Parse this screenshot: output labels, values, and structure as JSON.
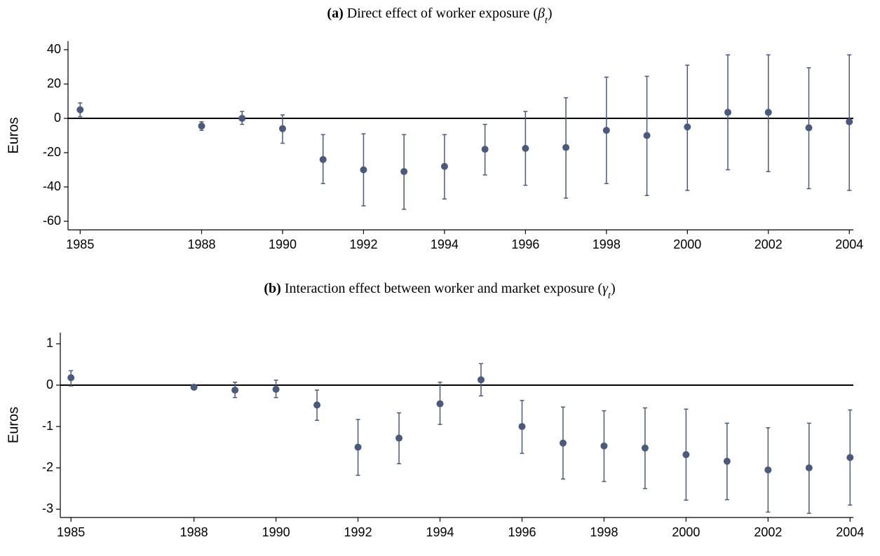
{
  "chart_data": [
    {
      "type": "scatter",
      "title": [
        "(a)",
        "Direct effect of worker exposure (",
        "β",
        "t",
        ")"
      ],
      "y_label": "Euros",
      "x": [
        1985,
        1988,
        1989,
        1990,
        1991,
        1992,
        1993,
        1994,
        1995,
        1996,
        1997,
        1998,
        1999,
        2000,
        2001,
        2002,
        2003,
        2004
      ],
      "series": [
        {
          "color": "#4b5a7a",
          "values": [
            5,
            -4.5,
            0,
            -6,
            -24,
            -30,
            -31,
            -28,
            -18,
            -17.5,
            -17,
            -7,
            -10,
            -5,
            3.5,
            3.5,
            -5.5,
            -2
          ],
          "lower": [
            1,
            -7,
            -3.5,
            -14.5,
            -38,
            -51,
            -53,
            -47,
            -33,
            -39,
            -46.5,
            -38,
            -45,
            -42,
            -30,
            -31,
            -41,
            -42
          ],
          "upper": [
            9,
            -2,
            4,
            2,
            -9.5,
            -9,
            -9.5,
            -9.5,
            -3.5,
            4,
            12,
            24,
            24.5,
            31,
            37,
            37,
            29.5,
            37
          ]
        }
      ],
      "xlim": [
        1984.7,
        2004.1
      ],
      "xticks": [
        1985,
        1988,
        1990,
        1992,
        1994,
        1996,
        1998,
        2000,
        2002,
        2004
      ],
      "ylim": [
        -65,
        45
      ],
      "yticks": [
        -60,
        -40,
        -20,
        0,
        20,
        40
      ],
      "hline": 0
    },
    {
      "type": "scatter",
      "title": [
        "(b)",
        "Interaction effect between worker and market exposure (",
        "γ",
        "t",
        ")"
      ],
      "y_label": "Euros",
      "x": [
        1985,
        1988,
        1989,
        1990,
        1991,
        1992,
        1993,
        1994,
        1995,
        1996,
        1997,
        1998,
        1999,
        2000,
        2001,
        2002,
        2003,
        2004
      ],
      "series": [
        {
          "color": "#4b5a7a",
          "values": [
            0.18,
            -0.05,
            -0.12,
            -0.1,
            -0.48,
            -1.5,
            -1.28,
            -0.45,
            0.13,
            -1.0,
            -1.4,
            -1.47,
            -1.52,
            -1.68,
            -1.84,
            -2.05,
            -2.0,
            -1.75
          ],
          "lower": [
            -0.02,
            -0.1,
            -0.3,
            -0.3,
            -0.85,
            -2.18,
            -1.9,
            -0.95,
            -0.26,
            -1.65,
            -2.27,
            -2.33,
            -2.5,
            -2.78,
            -2.77,
            -3.07,
            -3.1,
            -2.9
          ],
          "upper": [
            0.35,
            0,
            0.07,
            0.12,
            -0.12,
            -0.83,
            -0.67,
            0.07,
            0.52,
            -0.37,
            -0.53,
            -0.62,
            -0.55,
            -0.58,
            -0.92,
            -1.03,
            -0.92,
            -0.6
          ]
        }
      ],
      "xlim": [
        1984.74,
        2004.08
      ],
      "xticks": [
        1985,
        1988,
        1990,
        1992,
        1994,
        1996,
        1998,
        2000,
        2002,
        2004
      ],
      "ylim": [
        -3.2,
        1.27
      ],
      "yticks": [
        -3,
        -2,
        -1,
        0,
        1
      ],
      "hline": 0
    }
  ]
}
